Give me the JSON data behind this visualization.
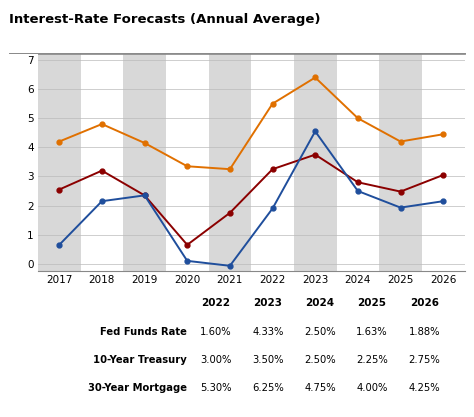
{
  "title": "Interest-Rate Forecasts (Annual Average)",
  "years": [
    2017,
    2018,
    2019,
    2020,
    2021,
    2022,
    2023,
    2024,
    2025,
    2026
  ],
  "fed_funds": [
    0.65,
    2.15,
    2.35,
    0.1,
    -0.07,
    1.9,
    4.55,
    2.5,
    1.93,
    2.15
  ],
  "treasury_10yr": [
    2.55,
    3.2,
    2.35,
    0.65,
    1.75,
    3.25,
    3.75,
    2.8,
    2.48,
    3.05
  ],
  "mortgage_30yr": [
    4.2,
    4.8,
    4.15,
    3.35,
    3.25,
    5.5,
    6.4,
    5.0,
    4.2,
    4.45
  ],
  "fed_color": "#1f4e9c",
  "treasury_color": "#8b0000",
  "mortgage_color": "#e07000",
  "bg_color": "#ffffff",
  "strip_color": "#d8d8d8",
  "ylim": [
    -0.25,
    7.2
  ],
  "yticks": [
    0,
    1,
    2,
    3,
    4,
    5,
    6,
    7
  ],
  "shade_years": [
    2017,
    2019,
    2021,
    2023,
    2025
  ],
  "table_years": [
    "2022",
    "2023",
    "2024",
    "2025",
    "2026"
  ],
  "table_rows": {
    "Fed Funds Rate": [
      "1.60%",
      "4.33%",
      "2.50%",
      "1.63%",
      "1.88%"
    ],
    "10-Year Treasury": [
      "3.00%",
      "3.50%",
      "2.50%",
      "2.25%",
      "2.75%"
    ],
    "30-Year Mortgage": [
      "5.30%",
      "6.25%",
      "4.75%",
      "4.00%",
      "4.25%"
    ]
  },
  "legend_labels": [
    "Fed Funds Rate",
    "10-Year Treasury",
    "30-Year Mortgage"
  ]
}
